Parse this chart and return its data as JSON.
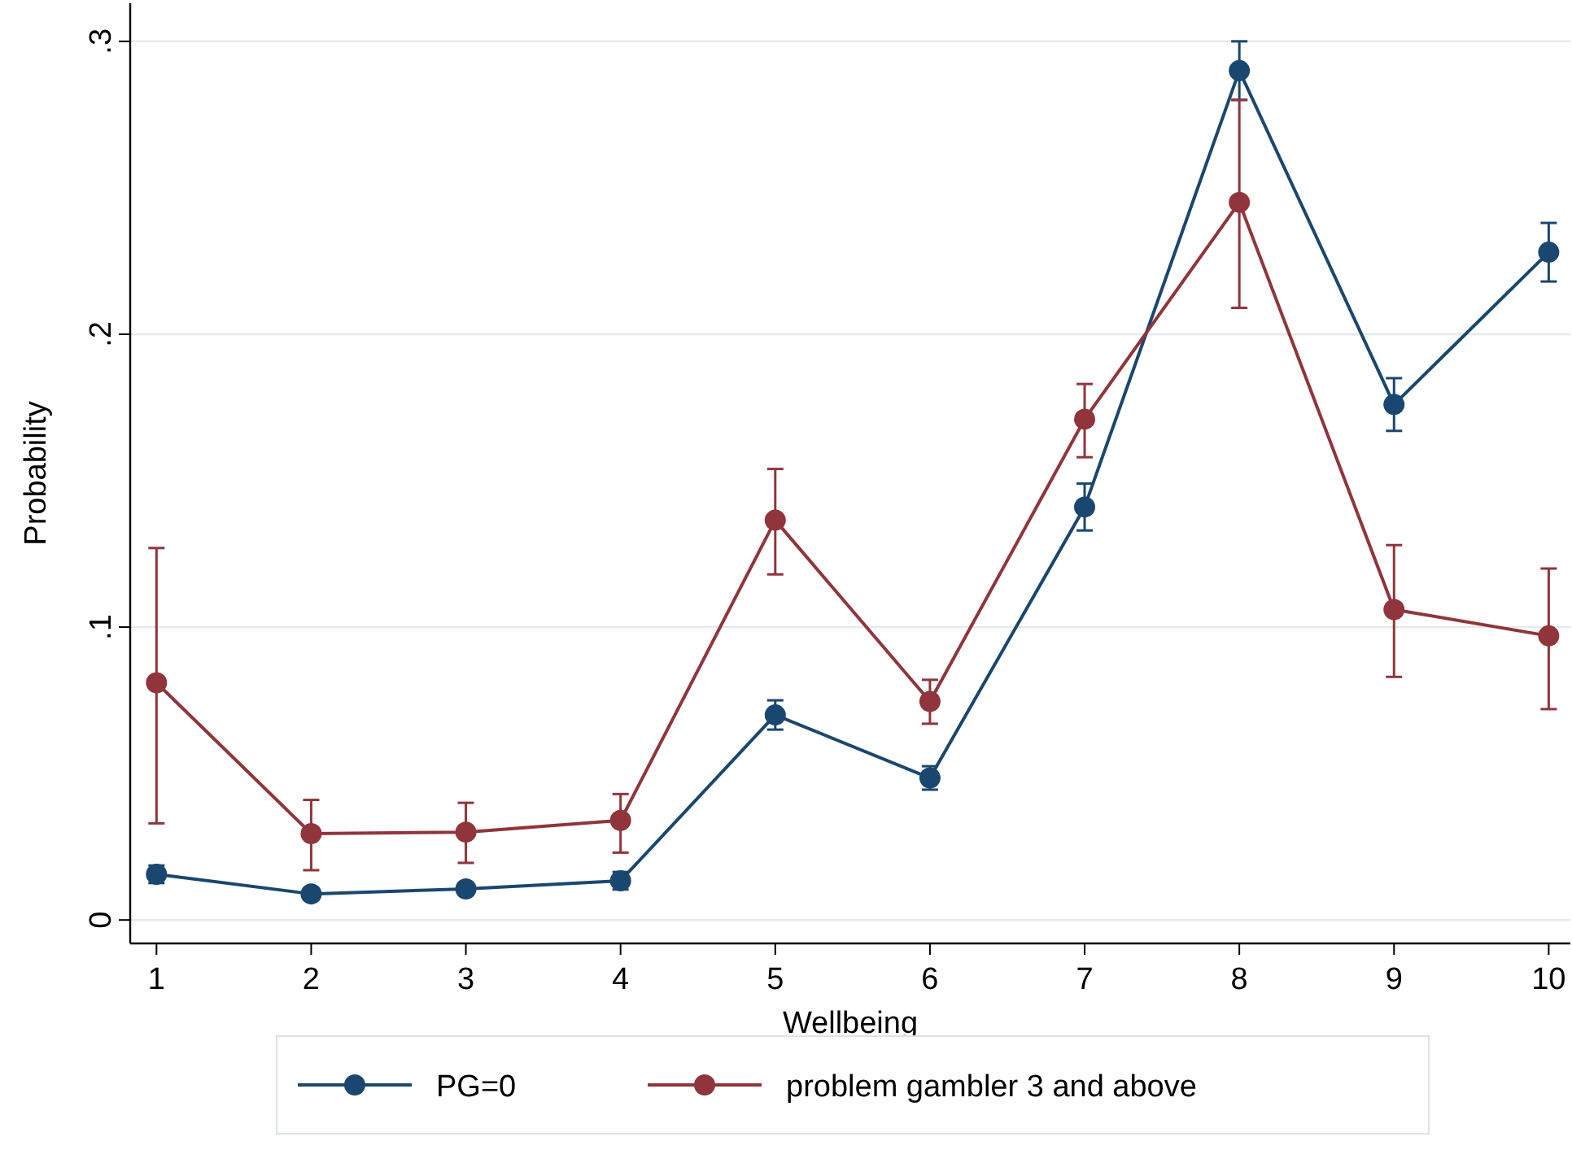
{
  "chart_data": {
    "type": "line",
    "xlabel": "Wellbeing",
    "ylabel": "Probability",
    "x": [
      1,
      2,
      3,
      4,
      5,
      6,
      7,
      8,
      9,
      10
    ],
    "xlim": [
      0.83,
      10.14
    ],
    "xticks": [
      1,
      2,
      3,
      4,
      5,
      6,
      7,
      8,
      9,
      10
    ],
    "ylim": [
      -0.008,
      0.313
    ],
    "yticks": [
      {
        "value": 0,
        "label": "0"
      },
      {
        "value": 0.1,
        "label": ".1"
      },
      {
        "value": 0.2,
        "label": ".2"
      },
      {
        "value": 0.3,
        "label": ".3"
      }
    ],
    "grid": "y",
    "legend": "bottom",
    "marker": "circle",
    "series": [
      {
        "name": "PG=0",
        "color": "#1a476f",
        "values": [
          0.0156,
          0.0089,
          0.0106,
          0.0134,
          0.07,
          0.0485,
          0.141,
          0.29,
          0.176,
          0.228
        ],
        "errors": [
          0.003,
          0.002,
          0.002,
          0.003,
          0.005,
          0.004,
          0.008,
          0.01,
          0.009,
          0.01
        ]
      },
      {
        "name": "problem gambler 3 and above",
        "color": "#90353b",
        "values": [
          0.081,
          0.0295,
          0.03,
          0.034,
          0.1365,
          0.0746,
          0.171,
          0.245,
          0.106,
          0.097
        ],
        "errors": [
          [
            0.033,
            0.127
          ],
          [
            0.017,
            0.041
          ],
          [
            0.0195,
            0.04
          ],
          [
            0.023,
            0.043
          ],
          [
            0.118,
            0.154
          ],
          [
            0.067,
            0.082
          ],
          [
            0.158,
            0.183
          ],
          [
            0.209,
            0.28
          ],
          [
            0.083,
            0.128
          ],
          [
            0.072,
            0.12
          ]
        ]
      }
    ]
  }
}
